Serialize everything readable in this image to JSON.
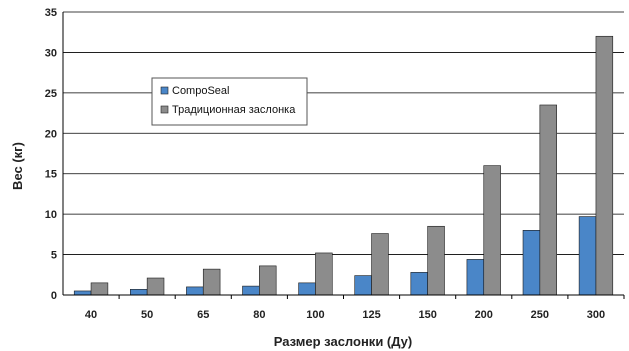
{
  "chart_data": {
    "type": "bar",
    "categories": [
      "40",
      "50",
      "65",
      "80",
      "100",
      "125",
      "150",
      "200",
      "250",
      "300"
    ],
    "series": [
      {
        "name": "CompoSeal",
        "color": "#4a86c8",
        "values": [
          0.5,
          0.7,
          1.0,
          1.1,
          1.5,
          2.4,
          2.8,
          4.4,
          8.0,
          9.7
        ]
      },
      {
        "name": "Традиционная заслонка",
        "color": "#8c8c8c",
        "values": [
          1.5,
          2.1,
          3.2,
          3.6,
          5.2,
          7.6,
          8.5,
          16.0,
          23.5,
          32.0
        ]
      }
    ],
    "xlabel": "Размер заслонки (Ду)",
    "ylabel": "Вес (кг)",
    "ylim": [
      0,
      35
    ],
    "yticks": [
      0,
      5,
      10,
      15,
      20,
      25,
      30,
      35
    ],
    "grid": true,
    "legend": "upper-left inside plot"
  }
}
